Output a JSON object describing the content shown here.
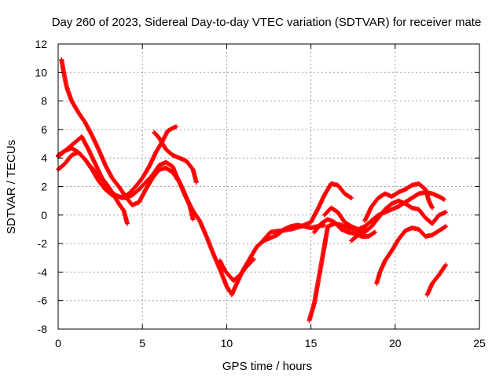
{
  "chart_data": {
    "type": "scatter",
    "title": "Day 260 of 2023, Sidereal Day-to-day VTEC variation (SDTVAR) for receiver mate",
    "xlabel": "GPS time / hours",
    "ylabel": "SDTVAR / TECUs",
    "xlim": [
      0,
      25
    ],
    "ylim": [
      -8,
      12
    ],
    "xticks": [
      "0",
      "5",
      "10",
      "15",
      "20",
      "25"
    ],
    "yticks": [
      "-8",
      "-6",
      "-4",
      "-2",
      "0",
      "2",
      "4",
      "6",
      "8",
      "10",
      "12"
    ],
    "grid": true,
    "marker": "+",
    "color": "#ff0000",
    "series": [
      {
        "points": [
          [
            0.2,
            10.9
          ],
          [
            0.3,
            10.2
          ],
          [
            0.5,
            9.0
          ],
          [
            0.8,
            8.0
          ],
          [
            1.2,
            7.2
          ],
          [
            1.6,
            6.5
          ],
          [
            2.0,
            5.6
          ],
          [
            2.4,
            4.6
          ],
          [
            2.8,
            3.5
          ],
          [
            3.2,
            2.6
          ],
          [
            3.6,
            2.0
          ],
          [
            4.0,
            1.3
          ],
          [
            4.4,
            0.7
          ],
          [
            4.8,
            0.9
          ],
          [
            5.2,
            1.8
          ],
          [
            5.6,
            2.6
          ],
          [
            6.0,
            3.2
          ],
          [
            6.4,
            3.3
          ],
          [
            6.8,
            3.0
          ],
          [
            7.2,
            2.3
          ],
          [
            7.6,
            1.2
          ],
          [
            8.0,
            0.3
          ],
          [
            8.4,
            -0.4
          ],
          [
            8.8,
            -1.5
          ],
          [
            9.2,
            -2.7
          ],
          [
            9.6,
            -3.8
          ],
          [
            10.0,
            -5.0
          ],
          [
            10.2,
            -5.4
          ]
        ]
      },
      {
        "points": [
          [
            0.0,
            3.2
          ],
          [
            0.4,
            3.6
          ],
          [
            0.8,
            4.2
          ],
          [
            1.2,
            4.4
          ],
          [
            1.6,
            3.9
          ],
          [
            2.0,
            3.2
          ],
          [
            2.4,
            2.4
          ],
          [
            2.8,
            1.8
          ],
          [
            3.2,
            1.4
          ],
          [
            3.6,
            1.3
          ],
          [
            4.0,
            1.2
          ],
          [
            4.4,
            1.4
          ],
          [
            4.8,
            1.8
          ],
          [
            5.2,
            2.3
          ],
          [
            5.6,
            2.8
          ],
          [
            6.0,
            3.5
          ],
          [
            6.4,
            3.7
          ],
          [
            6.8,
            3.4
          ],
          [
            7.0,
            2.8
          ],
          [
            7.4,
            1.8
          ],
          [
            7.8,
            0.7
          ],
          [
            8.0,
            -0.3
          ]
        ]
      },
      {
        "points": [
          [
            0.0,
            4.1
          ],
          [
            0.5,
            4.6
          ],
          [
            1.0,
            5.1
          ],
          [
            1.4,
            5.5
          ],
          [
            1.8,
            4.6
          ],
          [
            2.2,
            3.6
          ],
          [
            2.6,
            2.6
          ],
          [
            3.0,
            1.8
          ],
          [
            3.4,
            1.4
          ],
          [
            3.8,
            1.2
          ],
          [
            4.2,
            1.5
          ],
          [
            4.6,
            2.0
          ],
          [
            5.0,
            2.6
          ],
          [
            5.4,
            3.4
          ],
          [
            5.8,
            4.4
          ],
          [
            6.2,
            5.2
          ],
          [
            6.5,
            5.9
          ],
          [
            6.8,
            6.1
          ],
          [
            7.0,
            6.2
          ]
        ]
      },
      {
        "points": [
          [
            0.0,
            4.2
          ],
          [
            0.4,
            4.5
          ],
          [
            0.8,
            4.7
          ],
          [
            1.2,
            4.4
          ],
          [
            1.6,
            3.9
          ],
          [
            2.0,
            3.3
          ],
          [
            2.4,
            2.8
          ],
          [
            2.8,
            2.3
          ],
          [
            3.2,
            1.6
          ],
          [
            3.6,
            0.8
          ],
          [
            3.9,
            0.3
          ],
          [
            4.1,
            -0.6
          ]
        ]
      },
      {
        "points": [
          [
            5.7,
            5.8
          ],
          [
            6.0,
            5.4
          ],
          [
            6.4,
            4.6
          ],
          [
            6.8,
            4.2
          ],
          [
            7.2,
            4.0
          ],
          [
            7.6,
            3.8
          ],
          [
            8.0,
            3.2
          ],
          [
            8.2,
            2.3
          ]
        ]
      },
      {
        "points": [
          [
            10.3,
            -5.6
          ],
          [
            10.6,
            -4.8
          ],
          [
            11.0,
            -3.8
          ],
          [
            11.4,
            -3.0
          ],
          [
            11.8,
            -2.2
          ],
          [
            12.2,
            -1.8
          ],
          [
            12.6,
            -1.6
          ],
          [
            13.0,
            -1.4
          ],
          [
            13.4,
            -1.0
          ],
          [
            13.8,
            -0.8
          ],
          [
            14.2,
            -0.7
          ],
          [
            14.6,
            -0.8
          ],
          [
            15.0,
            -0.9
          ],
          [
            15.4,
            -0.8
          ],
          [
            15.8,
            -0.7
          ]
        ]
      },
      {
        "points": [
          [
            12.0,
            -2.0
          ],
          [
            12.6,
            -1.2
          ],
          [
            13.2,
            -1.1
          ],
          [
            13.8,
            -1.0
          ],
          [
            14.4,
            -0.8
          ],
          [
            15.0,
            -0.5
          ],
          [
            15.4,
            0.4
          ],
          [
            15.8,
            1.4
          ],
          [
            16.2,
            2.2
          ],
          [
            16.6,
            2.1
          ],
          [
            17.0,
            1.5
          ],
          [
            17.4,
            1.2
          ]
        ]
      },
      {
        "points": [
          [
            9.6,
            -3.2
          ],
          [
            9.9,
            -3.9
          ],
          [
            10.4,
            -4.6
          ],
          [
            10.8,
            -4.2
          ],
          [
            11.2,
            -3.6
          ],
          [
            11.6,
            -3.1
          ]
        ]
      },
      {
        "points": [
          [
            14.9,
            -7.4
          ],
          [
            15.2,
            -6.2
          ],
          [
            15.5,
            -4.2
          ],
          [
            15.8,
            -2.2
          ],
          [
            16.0,
            -0.8
          ],
          [
            16.4,
            -0.6
          ],
          [
            16.8,
            -0.7
          ],
          [
            17.2,
            -0.9
          ],
          [
            17.6,
            -1.0
          ],
          [
            18.0,
            -1.2
          ],
          [
            18.4,
            -1.0
          ]
        ]
      },
      {
        "points": [
          [
            15.2,
            -1.2
          ],
          [
            15.6,
            -0.6
          ],
          [
            16.0,
            -0.3
          ],
          [
            16.4,
            -0.5
          ],
          [
            16.8,
            -1.0
          ],
          [
            17.2,
            -1.2
          ],
          [
            17.6,
            -1.3
          ],
          [
            18.0,
            -1.5
          ],
          [
            18.4,
            -1.5
          ],
          [
            18.8,
            -1.2
          ]
        ]
      },
      {
        "points": [
          [
            15.8,
            0.0
          ],
          [
            16.2,
            0.5
          ],
          [
            16.6,
            0.2
          ],
          [
            17.0,
            -0.5
          ],
          [
            17.4,
            -0.8
          ],
          [
            17.8,
            -1.0
          ],
          [
            18.2,
            -0.8
          ],
          [
            18.6,
            -0.4
          ],
          [
            19.0,
            0.0
          ],
          [
            19.4,
            0.2
          ],
          [
            19.8,
            0.4
          ],
          [
            20.2,
            0.6
          ],
          [
            20.6,
            0.9
          ],
          [
            21.0,
            1.2
          ],
          [
            21.4,
            1.5
          ],
          [
            21.8,
            1.6
          ],
          [
            22.2,
            1.5
          ],
          [
            22.6,
            1.3
          ],
          [
            22.9,
            1.1
          ]
        ]
      },
      {
        "points": [
          [
            18.2,
            -0.4
          ],
          [
            18.6,
            0.6
          ],
          [
            19.0,
            1.2
          ],
          [
            19.4,
            1.5
          ],
          [
            19.8,
            1.3
          ],
          [
            20.2,
            1.6
          ],
          [
            20.6,
            1.8
          ],
          [
            21.0,
            2.1
          ],
          [
            21.4,
            2.2
          ],
          [
            21.8,
            1.8
          ],
          [
            22.0,
            1.0
          ],
          [
            22.2,
            0.5
          ]
        ]
      },
      {
        "points": [
          [
            17.4,
            -1.8
          ],
          [
            17.8,
            -1.4
          ],
          [
            18.2,
            -1.2
          ],
          [
            18.6,
            -0.8
          ],
          [
            19.0,
            -0.2
          ],
          [
            19.4,
            0.4
          ],
          [
            19.8,
            0.8
          ],
          [
            20.2,
            1.0
          ],
          [
            20.6,
            0.8
          ],
          [
            21.0,
            0.5
          ],
          [
            21.4,
            0.4
          ],
          [
            21.8,
            -0.2
          ],
          [
            22.2,
            -0.6
          ],
          [
            22.6,
            0.0
          ],
          [
            23.0,
            0.2
          ]
        ]
      },
      {
        "points": [
          [
            18.9,
            -4.8
          ],
          [
            19.1,
            -4.0
          ],
          [
            19.4,
            -3.2
          ],
          [
            19.8,
            -2.5
          ],
          [
            20.2,
            -1.7
          ],
          [
            20.6,
            -1.1
          ],
          [
            21.0,
            -0.9
          ],
          [
            21.4,
            -1.0
          ],
          [
            21.8,
            -1.5
          ],
          [
            22.2,
            -1.4
          ],
          [
            22.6,
            -1.1
          ],
          [
            23.0,
            -0.8
          ]
        ]
      },
      {
        "points": [
          [
            21.9,
            -5.6
          ],
          [
            22.2,
            -4.8
          ],
          [
            22.6,
            -4.2
          ],
          [
            23.0,
            -3.5
          ]
        ]
      }
    ]
  }
}
